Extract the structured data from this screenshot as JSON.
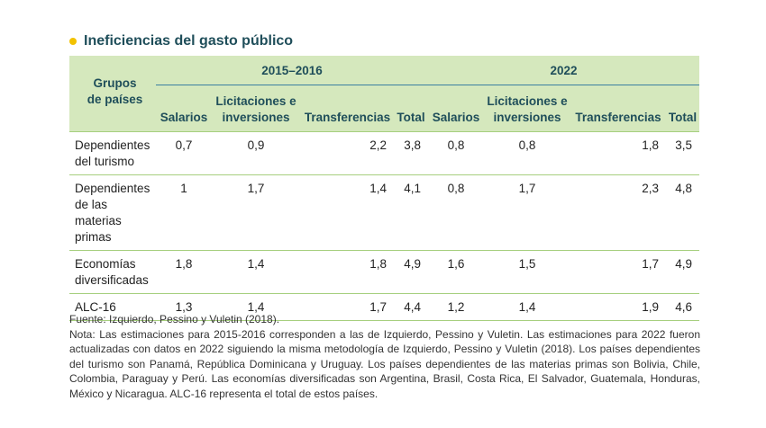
{
  "title": "Ineficiencias del gasto público",
  "header": {
    "group_label_line1": "Grupos",
    "group_label_line2": "de países",
    "period1": "2015–2016",
    "period2": "2022",
    "col_salarios": "Salarios",
    "col_licitaciones_line1": "Licitaciones e",
    "col_licitaciones_line2": "inversiones",
    "col_transferencias": "Transferencias",
    "col_total": "Total"
  },
  "rows": [
    {
      "label_lines": [
        "Dependientes",
        "del turismo"
      ],
      "p1": {
        "salarios": "0,7",
        "licitaciones": "0,9",
        "transferencias": "2,2",
        "total": "3,8"
      },
      "p2": {
        "salarios": "0,8",
        "licitaciones": "0,8",
        "transferencias": "1,8",
        "total": "3,5"
      }
    },
    {
      "label_lines": [
        "Dependientes",
        "de las",
        "materias",
        "primas"
      ],
      "p1": {
        "salarios": "1",
        "licitaciones": "1,7",
        "transferencias": "1,4",
        "total": "4,1"
      },
      "p2": {
        "salarios": "0,8",
        "licitaciones": "1,7",
        "transferencias": "2,3",
        "total": "4,8"
      }
    },
    {
      "label_lines": [
        "Economías",
        "diversificadas"
      ],
      "p1": {
        "salarios": "1,8",
        "licitaciones": "1,4",
        "transferencias": "1,8",
        "total": "4,9"
      },
      "p2": {
        "salarios": "1,6",
        "licitaciones": "1,5",
        "transferencias": "1,7",
        "total": "4,9"
      }
    },
    {
      "label_lines": [
        "ALC-16"
      ],
      "p1": {
        "salarios": "1,3",
        "licitaciones": "1,4",
        "transferencias": "1,7",
        "total": "4,4"
      },
      "p2": {
        "salarios": "1,2",
        "licitaciones": "1,4",
        "transferencias": "1,9",
        "total": "4,6"
      }
    }
  ],
  "source": "Fuente: Izquierdo, Pessino y Vuletin (2018).",
  "note": "Nota: Las estimaciones para 2015-2016 corresponden a las de Izquierdo, Pessino y Vuletin. Las estimaciones para 2022 fueron actualizadas con datos en 2022 siguiendo la misma metodología de Izquierdo, Pessino y Vuletin (2018). Los países dependientes del turismo son Panamá, República Dominicana y Uruguay. Los países dependientes de las materias primas son Bolivia, Chile, Colombia, Paraguay y Perú. Las economías diversificadas son Argentina, Brasil, Costa Rica, El Salvador, Guatemala, Honduras, México y Nicaragua. ALC-16 representa el total de estos países.",
  "colors": {
    "header_bg": "#d5e8bd",
    "rule": "#a6cf7e",
    "bullet": "#f2c200",
    "title": "#1f4e5a"
  }
}
